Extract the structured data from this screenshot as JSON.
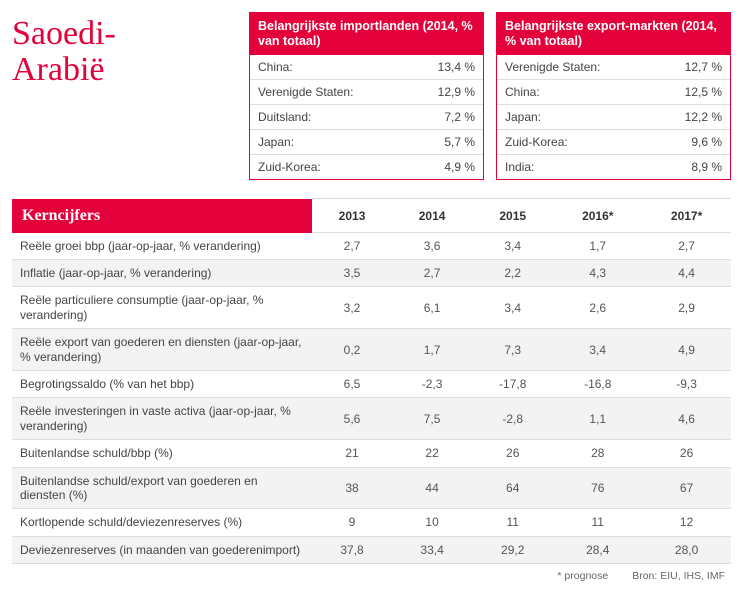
{
  "title": "Saoedi-\nArabië",
  "colors": {
    "accent": "#e4003a",
    "text": "#333333",
    "muted": "#666666",
    "row_stripe": "#f3f3f3",
    "border": "#dddddd",
    "background": "#ffffff"
  },
  "import_table": {
    "header": "Belangrijkste importlanden (2014, % van totaal)",
    "rows": [
      {
        "label": "China:",
        "value": "13,4 %"
      },
      {
        "label": "Verenigde Staten:",
        "value": "12,9 %"
      },
      {
        "label": "Duitsland:",
        "value": "7,2 %"
      },
      {
        "label": "Japan:",
        "value": "5,7 %"
      },
      {
        "label": "Zuid-Korea:",
        "value": "4,9 %"
      }
    ]
  },
  "export_table": {
    "header": "Belangrijkste export-markten (2014, % van totaal)",
    "rows": [
      {
        "label": "Verenigde Staten:",
        "value": "12,7 %"
      },
      {
        "label": "China:",
        "value": "12,5 %"
      },
      {
        "label": "Japan:",
        "value": "12,2 %"
      },
      {
        "label": "Zuid-Korea:",
        "value": "9,6 %"
      },
      {
        "label": "India:",
        "value": "8,9 %"
      }
    ]
  },
  "kern": {
    "header_label": "Kerncijfers",
    "years": [
      "2013",
      "2014",
      "2015",
      "2016*",
      "2017*"
    ],
    "rows": [
      {
        "label": "Reële groei bbp (jaar-op-jaar, % verandering)",
        "values": [
          "2,7",
          "3,6",
          "3,4",
          "1,7",
          "2,7"
        ]
      },
      {
        "label": "Inflatie (jaar-op-jaar, % verandering)",
        "values": [
          "3,5",
          "2,7",
          "2,2",
          "4,3",
          "4,4"
        ]
      },
      {
        "label": "Reële particuliere consumptie (jaar-op-jaar, % verandering)",
        "values": [
          "3,2",
          "6,1",
          "3,4",
          "2,6",
          "2,9"
        ]
      },
      {
        "label": "Reële export van goederen en diensten (jaar-op-jaar, % verandering)",
        "values": [
          "0,2",
          "1,7",
          "7,3",
          "3,4",
          "4,9"
        ]
      },
      {
        "label": "Begrotingssaldo (% van het bbp)",
        "values": [
          "6,5",
          "-2,3",
          "-17,8",
          "-16,8",
          "-9,3"
        ]
      },
      {
        "label": "Reële investeringen in vaste activa (jaar-op-jaar, % verandering)",
        "values": [
          "5,6",
          "7,5",
          "-2,8",
          "1,1",
          "4,6"
        ]
      },
      {
        "label": "Buitenlandse schuld/bbp (%)",
        "values": [
          "21",
          "22",
          "26",
          "28",
          "26"
        ]
      },
      {
        "label": "Buitenlandse schuld/export van goederen en diensten (%)",
        "values": [
          "38",
          "44",
          "64",
          "76",
          "67"
        ]
      },
      {
        "label": "Kortlopende schuld/deviezenreserves (%)",
        "values": [
          "9",
          "10",
          "11",
          "11",
          "12"
        ]
      },
      {
        "label": "Deviezenreserves (in maanden van goederenimport)",
        "values": [
          "37,8",
          "33,4",
          "29,2",
          "28,4",
          "28,0"
        ]
      }
    ]
  },
  "footer": {
    "prognose": "* prognose",
    "bron": "Bron:   EIU, IHS, IMF"
  }
}
